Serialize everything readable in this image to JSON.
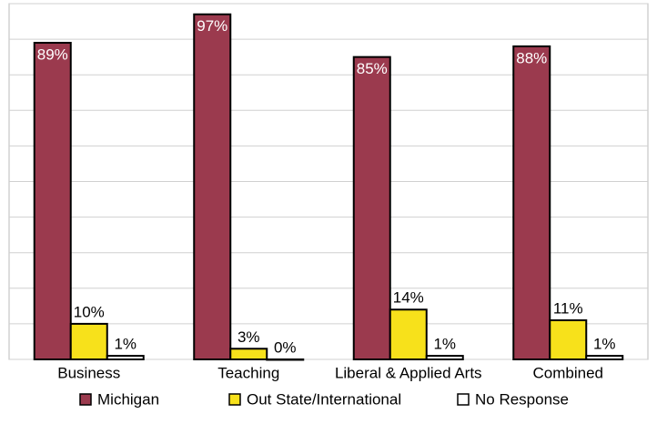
{
  "chart_data": {
    "type": "bar",
    "categories": [
      "Business",
      "Teaching",
      "Liberal & Applied Arts",
      "Combined"
    ],
    "series": [
      {
        "name": "Michigan",
        "color": "#9b3a4e",
        "values": [
          89,
          97,
          85,
          88
        ],
        "value_labels": [
          "89%",
          "97%",
          "85%",
          "88%"
        ]
      },
      {
        "name": "Out State/International",
        "color": "#f7e11b",
        "values": [
          10,
          3,
          14,
          11
        ],
        "value_labels": [
          "10%",
          "3%",
          "14%",
          "11%"
        ]
      },
      {
        "name": "No Response",
        "color": "#ffffff",
        "values": [
          1,
          0,
          1,
          1
        ],
        "value_labels": [
          "1%",
          "0%",
          "1%",
          "1%"
        ]
      }
    ],
    "ylim": [
      0,
      100
    ],
    "yticks": [
      0,
      10,
      20,
      30,
      40,
      50,
      60,
      70,
      80,
      90,
      100
    ],
    "grid": true,
    "legend": "bottom"
  }
}
